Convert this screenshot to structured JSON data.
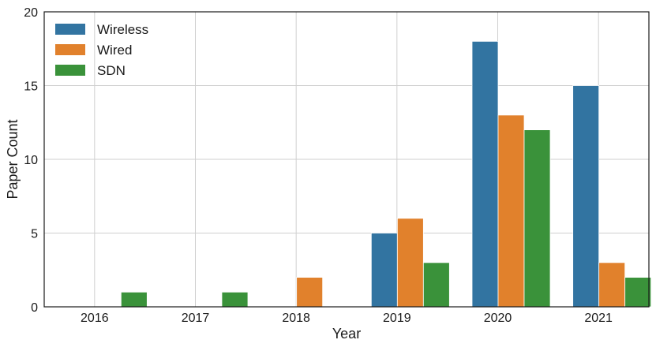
{
  "chart_data": {
    "type": "bar",
    "title": "",
    "xlabel": "Year",
    "ylabel": "Paper Count",
    "categories": [
      "2016",
      "2017",
      "2018",
      "2019",
      "2020",
      "2021"
    ],
    "series": [
      {
        "name": "Wireless",
        "color": "#3274a1",
        "values": [
          0,
          0,
          0,
          5,
          18,
          15
        ]
      },
      {
        "name": "Wired",
        "color": "#e1812c",
        "values": [
          0,
          0,
          2,
          6,
          13,
          3
        ]
      },
      {
        "name": "SDN",
        "color": "#3a923a",
        "values": [
          1,
          1,
          0,
          3,
          12,
          2
        ]
      }
    ],
    "ylim": [
      0,
      20
    ],
    "yticks": [
      0,
      5,
      10,
      15,
      20
    ],
    "grid": true,
    "legend": "top-left"
  }
}
